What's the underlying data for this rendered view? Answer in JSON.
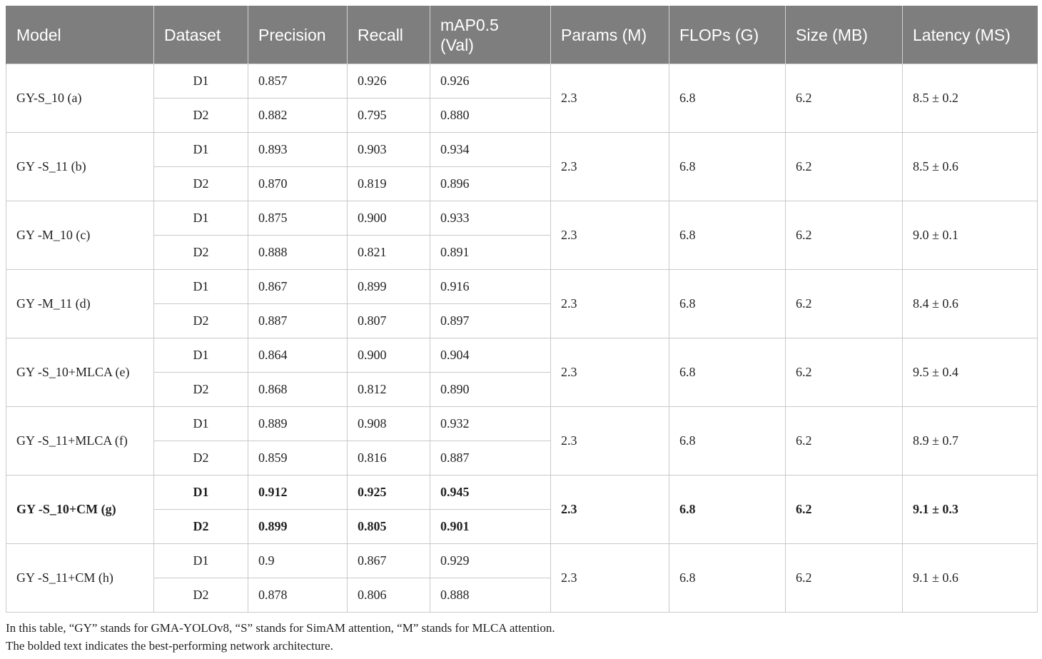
{
  "columns": [
    "Model",
    "Dataset",
    "Precision",
    "Recall",
    "mAP0.5\n(Val)",
    "Params (M)",
    "FLOPs (G)",
    "Size (MB)",
    "Latency (MS)"
  ],
  "models": [
    {
      "name": "GY-S_10 (a)",
      "params": "2.3",
      "flops": "6.8",
      "size": "6.2",
      "latency": "8.5 ± 0.2",
      "best": false,
      "rows": [
        {
          "dataset": "D1",
          "precision": "0.857",
          "recall": "0.926",
          "map": "0.926"
        },
        {
          "dataset": "D2",
          "precision": "0.882",
          "recall": "0.795",
          "map": "0.880"
        }
      ]
    },
    {
      "name": "GY -S_11 (b)",
      "params": "2.3",
      "flops": "6.8",
      "size": "6.2",
      "latency": "8.5 ± 0.6",
      "best": false,
      "rows": [
        {
          "dataset": "D1",
          "precision": "0.893",
          "recall": "0.903",
          "map": "0.934"
        },
        {
          "dataset": "D2",
          "precision": "0.870",
          "recall": "0.819",
          "map": "0.896"
        }
      ]
    },
    {
      "name": "GY -M_10 (c)",
      "params": "2.3",
      "flops": "6.8",
      "size": "6.2",
      "latency": "9.0 ± 0.1",
      "best": false,
      "rows": [
        {
          "dataset": "D1",
          "precision": "0.875",
          "recall": "0.900",
          "map": "0.933"
        },
        {
          "dataset": "D2",
          "precision": "0.888",
          "recall": "0.821",
          "map": "0.891"
        }
      ]
    },
    {
      "name": "GY -M_11 (d)",
      "params": "2.3",
      "flops": "6.8",
      "size": "6.2",
      "latency": "8.4 ± 0.6",
      "best": false,
      "rows": [
        {
          "dataset": "D1",
          "precision": "0.867",
          "recall": "0.899",
          "map": "0.916"
        },
        {
          "dataset": "D2",
          "precision": "0.887",
          "recall": "0.807",
          "map": "0.897"
        }
      ]
    },
    {
      "name": "GY -S_10+MLCA (e)",
      "params": "2.3",
      "flops": "6.8",
      "size": "6.2",
      "latency": "9.5 ± 0.4",
      "best": false,
      "rows": [
        {
          "dataset": "D1",
          "precision": "0.864",
          "recall": "0.900",
          "map": "0.904"
        },
        {
          "dataset": "D2",
          "precision": "0.868",
          "recall": "0.812",
          "map": "0.890"
        }
      ]
    },
    {
      "name": "GY -S_11+MLCA (f)",
      "params": "2.3",
      "flops": "6.8",
      "size": "6.2",
      "latency": "8.9 ± 0.7",
      "best": false,
      "rows": [
        {
          "dataset": "D1",
          "precision": "0.889",
          "recall": "0.908",
          "map": "0.932"
        },
        {
          "dataset": "D2",
          "precision": "0.859",
          "recall": "0.816",
          "map": "0.887"
        }
      ]
    },
    {
      "name": "GY -S_10+CM (g)",
      "params": "2.3",
      "flops": "6.8",
      "size": "6.2",
      "latency": "9.1 ± 0.3",
      "best": true,
      "rows": [
        {
          "dataset": "D1",
          "precision": "0.912",
          "recall": "0.925",
          "map": "0.945"
        },
        {
          "dataset": "D2",
          "precision": "0.899",
          "recall": "0.805",
          "map": "0.901"
        }
      ]
    },
    {
      "name": "GY -S_11+CM (h)",
      "params": "2.3",
      "flops": "6.8",
      "size": "6.2",
      "latency": "9.1 ± 0.6",
      "best": false,
      "rows": [
        {
          "dataset": "D1",
          "precision": "0.9",
          "recall": "0.867",
          "map": "0.929"
        },
        {
          "dataset": "D2",
          "precision": "0.878",
          "recall": "0.806",
          "map": "0.888"
        }
      ]
    }
  ],
  "notes": [
    "In this table, “GY” stands for GMA-YOLOv8, “S” stands for SimAM attention, “M” stands for MLCA attention.",
    "The bolded text indicates the best-performing network architecture."
  ],
  "colors": {
    "header_bg": "#7e7e7e",
    "header_text": "#ffffff",
    "grid": "#c9c9c9"
  }
}
